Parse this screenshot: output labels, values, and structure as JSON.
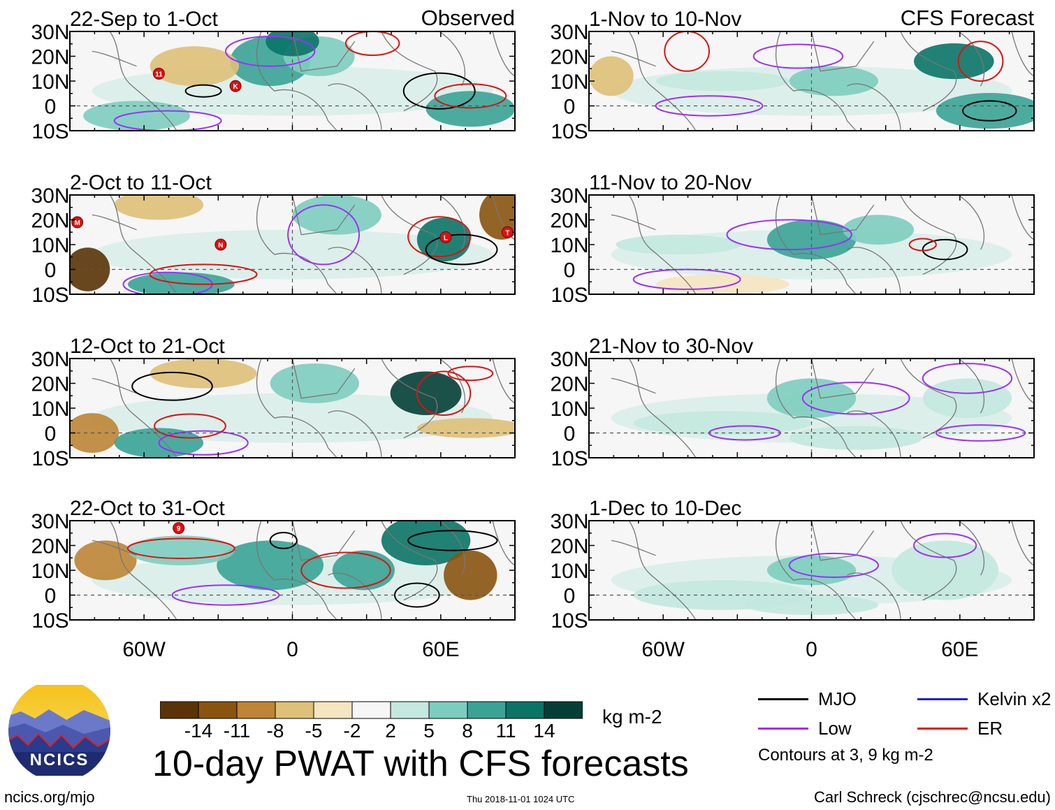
{
  "header": {
    "observed_label": "Observed",
    "forecast_label": "CFS Forecast"
  },
  "chart_data": [
    {
      "type": "heatmap",
      "column": "observed",
      "title": "22-Sep to 1-Oct",
      "ylabels": [
        "30N",
        "20N",
        "10N",
        "0",
        "10S"
      ],
      "xlabels": [
        "60W",
        "0",
        "60E"
      ],
      "ylim": [
        -10,
        30
      ],
      "xlim": [
        -90,
        90
      ],
      "storms": [
        {
          "label": "11",
          "lon": -54,
          "lat": 13
        },
        {
          "label": "K",
          "lon": -23,
          "lat": 8
        }
      ]
    },
    {
      "type": "heatmap",
      "column": "forecast",
      "title": "1-Nov to 10-Nov",
      "ylabels": [
        "30N",
        "20N",
        "10N",
        "0",
        "10S"
      ],
      "xlabels": [
        "60W",
        "0",
        "60E"
      ],
      "ylim": [
        -10,
        30
      ],
      "xlim": [
        -90,
        90
      ],
      "storms": []
    },
    {
      "type": "heatmap",
      "column": "observed",
      "title": "2-Oct to 11-Oct",
      "ylabels": [
        "30N",
        "20N",
        "10N",
        "0",
        "10S"
      ],
      "xlabels": [
        "60W",
        "0",
        "60E"
      ],
      "ylim": [
        -10,
        30
      ],
      "xlim": [
        -90,
        90
      ],
      "storms": [
        {
          "label": "M",
          "lon": -87,
          "lat": 19
        },
        {
          "label": "N",
          "lon": -29,
          "lat": 10
        },
        {
          "label": "L",
          "lon": 62,
          "lat": 13
        },
        {
          "label": "T",
          "lon": 87,
          "lat": 15
        }
      ]
    },
    {
      "type": "heatmap",
      "column": "forecast",
      "title": "11-Nov to 20-Nov",
      "ylabels": [
        "30N",
        "20N",
        "10N",
        "0",
        "10S"
      ],
      "xlabels": [
        "60W",
        "0",
        "60E"
      ],
      "ylim": [
        -10,
        30
      ],
      "xlim": [
        -90,
        90
      ],
      "storms": []
    },
    {
      "type": "heatmap",
      "column": "observed",
      "title": "12-Oct to 21-Oct",
      "ylabels": [
        "30N",
        "20N",
        "10N",
        "0",
        "10S"
      ],
      "xlabels": [
        "60W",
        "0",
        "60E"
      ],
      "ylim": [
        -10,
        30
      ],
      "xlim": [
        -90,
        90
      ],
      "storms": []
    },
    {
      "type": "heatmap",
      "column": "forecast",
      "title": "21-Nov to 30-Nov",
      "ylabels": [
        "30N",
        "20N",
        "10N",
        "0",
        "10S"
      ],
      "xlabels": [
        "60W",
        "0",
        "60E"
      ],
      "ylim": [
        -10,
        30
      ],
      "xlim": [
        -90,
        90
      ],
      "storms": []
    },
    {
      "type": "heatmap",
      "column": "observed",
      "title": "22-Oct to 31-Oct",
      "ylabels": [
        "30N",
        "20N",
        "10N",
        "0",
        "10S"
      ],
      "xlabels": [
        "60W",
        "0",
        "60E"
      ],
      "ylim": [
        -10,
        30
      ],
      "xlim": [
        -90,
        90
      ],
      "storms": [
        {
          "label": "9",
          "lon": -46,
          "lat": 27
        }
      ]
    },
    {
      "type": "heatmap",
      "column": "forecast",
      "title": "1-Dec to 10-Dec",
      "ylabels": [
        "30N",
        "20N",
        "10N",
        "0",
        "10S"
      ],
      "xlabels": [
        "60W",
        "0",
        "60E"
      ],
      "ylim": [
        -10,
        30
      ],
      "xlim": [
        -90,
        90
      ],
      "storms": []
    }
  ],
  "colorbar": {
    "ticks": [
      "-14",
      "-11",
      "-8",
      "-5",
      "-2",
      "2",
      "5",
      "8",
      "11",
      "14"
    ],
    "colors": [
      "#5a3407",
      "#8a5410",
      "#bd8535",
      "#dfc079",
      "#f5e6c0",
      "#f6f6f6",
      "#c3e8df",
      "#7dcdbf",
      "#3aa396",
      "#0a7467",
      "#043f37"
    ],
    "units": "kg m-2"
  },
  "title": "10-day PWAT with CFS forecasts",
  "legend": {
    "items": [
      {
        "label": "MJO",
        "color": "#000000"
      },
      {
        "label": "Kelvin x2",
        "color": "#2020d0"
      },
      {
        "label": "Low",
        "color": "#9b30ff"
      },
      {
        "label": "ER",
        "color": "#e01010"
      }
    ],
    "note": "Contours at 3, 9 kg m-2"
  },
  "logo": {
    "text": "NCICS"
  },
  "footer": {
    "left": "ncics.org/mjo",
    "middle": "Thu 2018-11-01 1024 UTC",
    "right": "Carl Schreck (cjschrec@ncsu.edu)"
  }
}
